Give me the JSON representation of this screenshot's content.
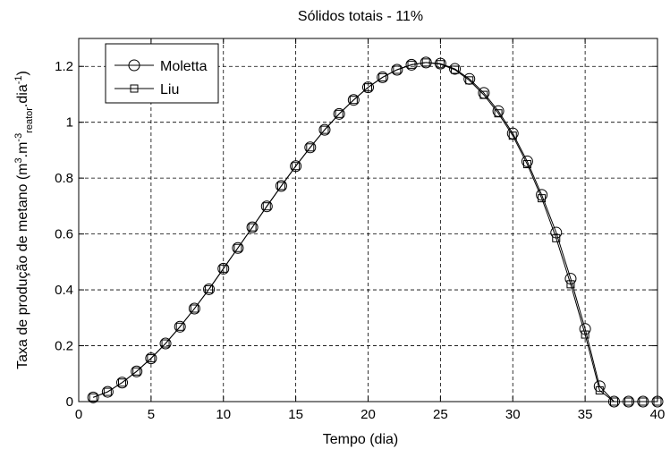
{
  "chart_data": {
    "type": "line",
    "title": "Sólidos totais - 11%",
    "xlabel": "Tempo (dia)",
    "ylabel": {
      "part1": "Taxa de produção de metano (m",
      "sup1": "3",
      "part2": ".m",
      "sup2": "-3",
      "sub1": "reator",
      "part3": ".dia",
      "sup3": "-1",
      "part4": ")"
    },
    "xlim": [
      0,
      40
    ],
    "ylim": [
      0,
      1.3
    ],
    "xticks": [
      0,
      5,
      10,
      15,
      20,
      25,
      30,
      35,
      40
    ],
    "yticks": [
      0,
      0.2,
      0.4,
      0.6,
      0.8,
      1,
      1.2
    ],
    "xtick_labels": [
      "0",
      "5",
      "10",
      "15",
      "20",
      "25",
      "30",
      "35",
      "40"
    ],
    "ytick_labels": [
      "0",
      "0.2",
      "0.4",
      "0.6",
      "0.8",
      "1",
      "1.2"
    ],
    "grid": true,
    "legend_position": "top-left",
    "x": [
      1,
      2,
      3,
      4,
      5,
      6,
      7,
      8,
      9,
      10,
      11,
      12,
      13,
      14,
      15,
      16,
      17,
      18,
      19,
      20,
      21,
      22,
      23,
      24,
      25,
      26,
      27,
      28,
      29,
      30,
      31,
      32,
      33,
      34,
      35,
      36,
      37,
      38,
      39,
      40
    ],
    "series": [
      {
        "name": "Moletta",
        "marker": "circle",
        "values": [
          0.015,
          0.035,
          0.068,
          0.108,
          0.155,
          0.208,
          0.268,
          0.333,
          0.402,
          0.476,
          0.55,
          0.624,
          0.699,
          0.772,
          0.843,
          0.91,
          0.973,
          1.03,
          1.08,
          1.125,
          1.161,
          1.188,
          1.206,
          1.214,
          1.21,
          1.191,
          1.155,
          1.105,
          1.04,
          0.96,
          0.86,
          0.74,
          0.605,
          0.44,
          0.26,
          0.055,
          0.0,
          0.0,
          0.0,
          0.0
        ]
      },
      {
        "name": "Liu",
        "marker": "square",
        "values": [
          0.015,
          0.035,
          0.068,
          0.108,
          0.155,
          0.208,
          0.268,
          0.333,
          0.402,
          0.476,
          0.55,
          0.624,
          0.699,
          0.772,
          0.843,
          0.91,
          0.973,
          1.03,
          1.08,
          1.125,
          1.161,
          1.188,
          1.206,
          1.214,
          1.208,
          1.188,
          1.15,
          1.098,
          1.032,
          0.952,
          0.85,
          0.728,
          0.585,
          0.42,
          0.24,
          0.04,
          0.0,
          0.0,
          0.0,
          0.0
        ]
      }
    ]
  }
}
